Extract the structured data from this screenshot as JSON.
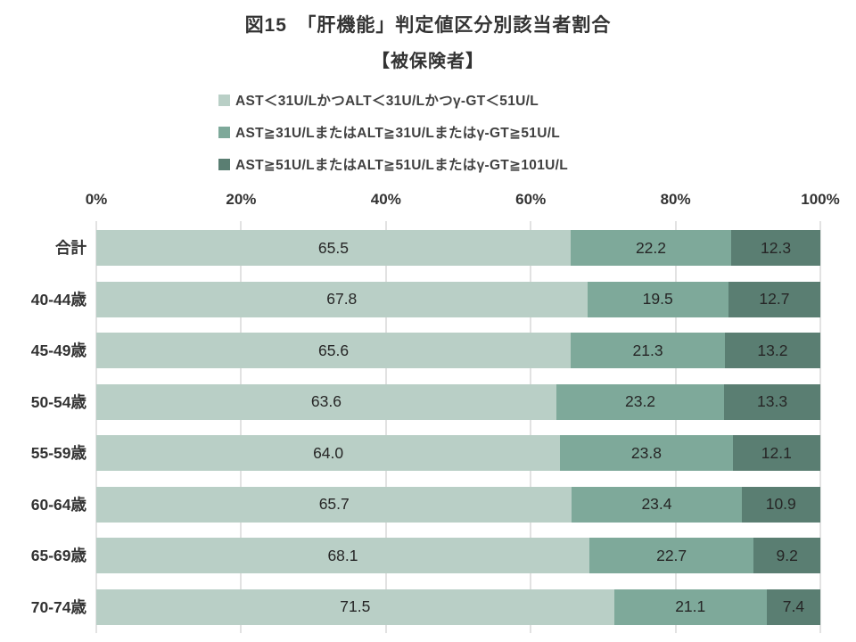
{
  "title": "図15　「肝機能」判定値区分別該当者割合",
  "subtitle": "【被保険者】",
  "legend": [
    {
      "label": "AST＜31U/LかつALT＜31U/Lかつγ-GT＜51U/L",
      "color": "#b9cfc6"
    },
    {
      "label": "AST≧31U/LまたはALT≧31U/Lまたはγ-GT≧51U/L",
      "color": "#7ea99a"
    },
    {
      "label": "AST≧51U/LまたはALT≧51U/Lまたはγ-GT≧101U/L",
      "color": "#5a7e72"
    }
  ],
  "chart_data": {
    "type": "bar",
    "stacked": true,
    "orientation": "horizontal",
    "title": "図15　「肝機能」判定値区分別該当者割合",
    "subtitle": "【被保険者】",
    "categories": [
      "合計",
      "40-44歳",
      "45-49歳",
      "50-54歳",
      "55-59歳",
      "60-64歳",
      "65-69歳",
      "70-74歳"
    ],
    "series": [
      {
        "name": "AST＜31U/LかつALT＜31U/Lかつγ-GT＜51U/L",
        "color": "#b9cfc6",
        "values": [
          65.5,
          67.8,
          65.6,
          63.6,
          64.0,
          65.7,
          68.1,
          71.5
        ]
      },
      {
        "name": "AST≧31U/LまたはALT≧31U/Lまたはγ-GT≧51U/L",
        "color": "#7ea99a",
        "values": [
          22.2,
          19.5,
          21.3,
          23.2,
          23.8,
          23.4,
          22.7,
          21.1
        ]
      },
      {
        "name": "AST≧51U/LまたはALT≧51U/Lまたはγ-GT≧101U/L",
        "color": "#5a7e72",
        "values": [
          12.3,
          12.7,
          13.2,
          13.3,
          12.1,
          10.9,
          9.2,
          7.4
        ]
      }
    ],
    "x_axis": {
      "ticks": [
        "0%",
        "20%",
        "40%",
        "60%",
        "80%",
        "100%"
      ],
      "range": [
        0,
        100
      ]
    },
    "grid": true,
    "gridline_color": "#e2e2e2",
    "legend_position": "top",
    "value_labels": "inside",
    "value_label_decimals": 1
  }
}
